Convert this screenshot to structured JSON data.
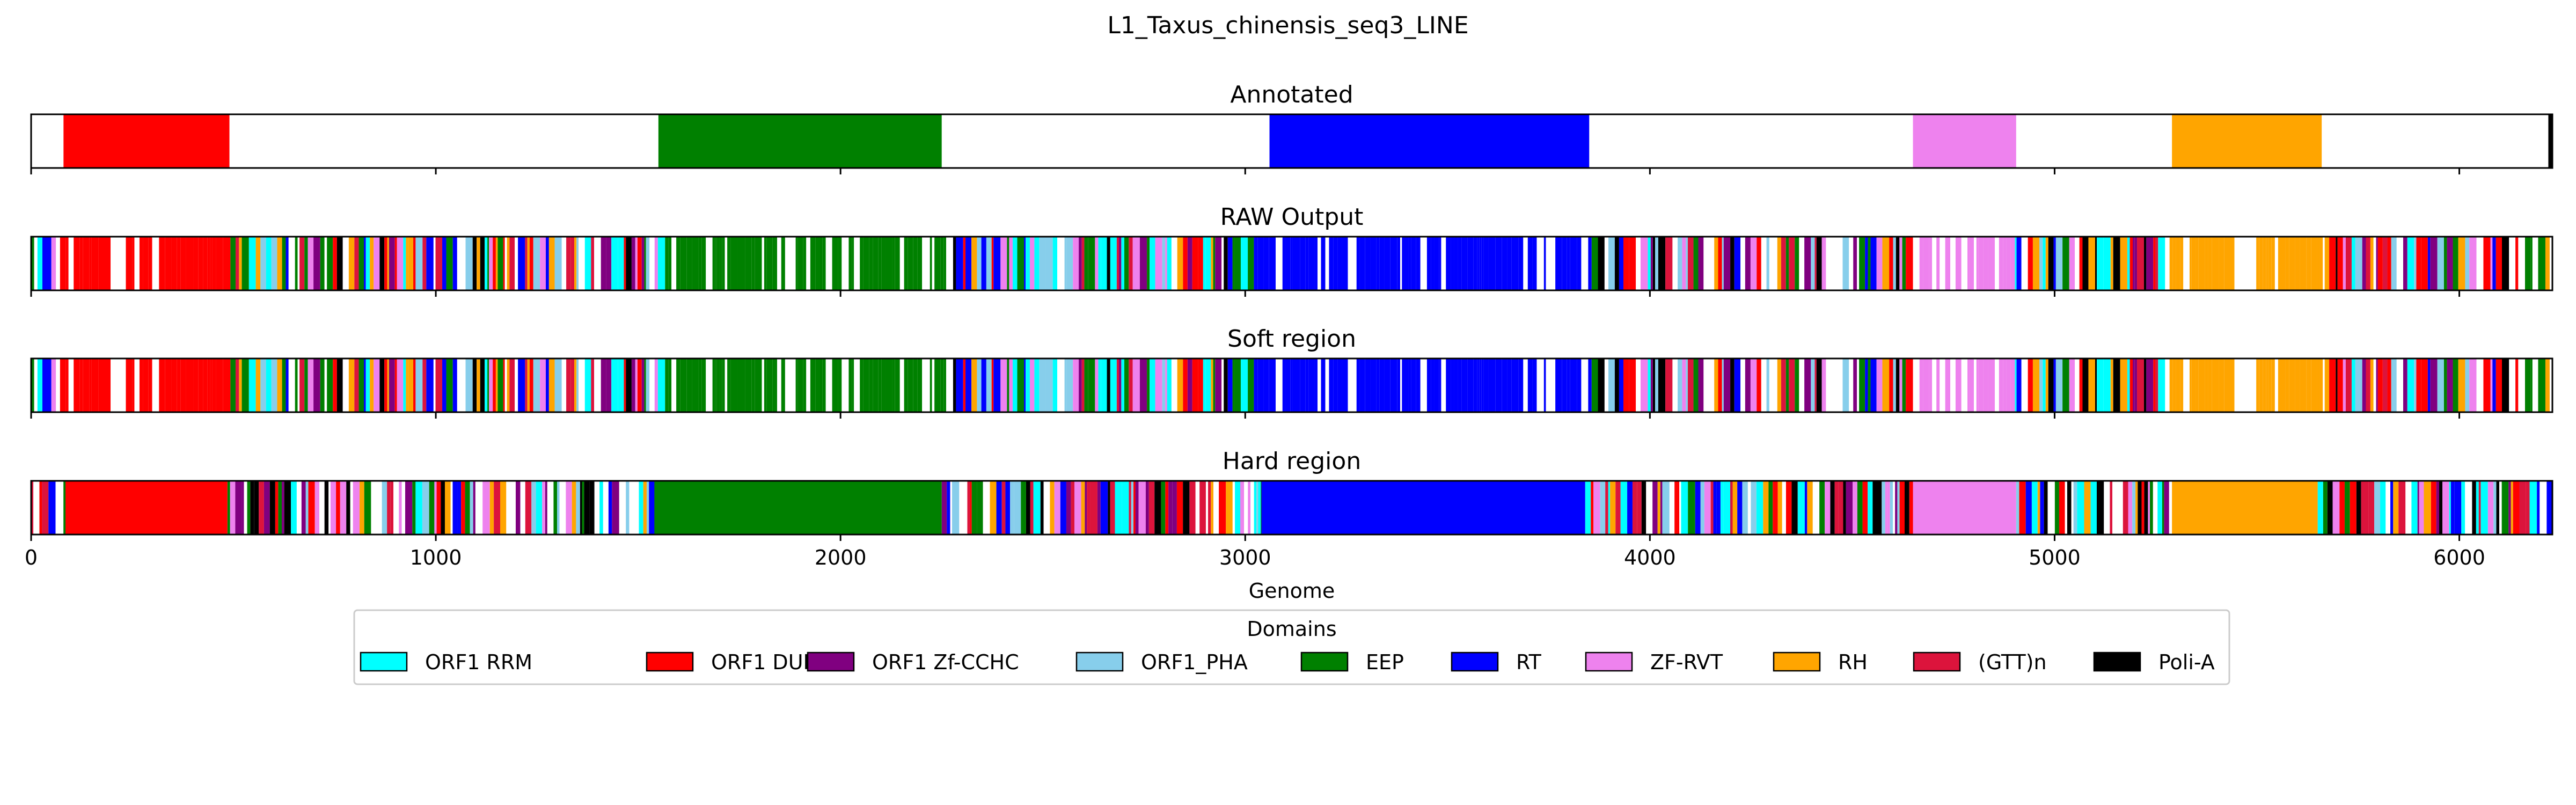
{
  "chart_data": {
    "type": "genome-track",
    "title": "L1_Taxus_chinensis_seq3_LINE",
    "xlabel": "Genome",
    "xlim": [
      0,
      6230
    ],
    "xticks": [
      0,
      1000,
      2000,
      3000,
      4000,
      5000,
      6000
    ],
    "xtick_labels": [
      "0",
      "1000",
      "2000",
      "3000",
      "4000",
      "5000",
      "6000"
    ],
    "legend": {
      "title": "Domains",
      "placement": "bottom-center",
      "entries": [
        {
          "name": "ORF1 RRM",
          "color": "#00ffff"
        },
        {
          "name": "ORF1 DUF",
          "color": "#ff0000"
        },
        {
          "name": "ORF1 Zf-CCHC",
          "color": "#800080"
        },
        {
          "name": "ORF1_PHA",
          "color": "#87ceeb"
        },
        {
          "name": "EEP",
          "color": "#008000"
        },
        {
          "name": "RT",
          "color": "#0000ff"
        },
        {
          "name": "ZF-RVT",
          "color": "#ee82ee"
        },
        {
          "name": "RH",
          "color": "#ffa500"
        },
        {
          "name": "(GTT)n",
          "color": "#dc143c"
        },
        {
          "name": "Poli-A",
          "color": "#000000"
        }
      ]
    },
    "tracks": [
      {
        "title": "Annotated",
        "segments": [
          {
            "domain": "ORF1 DUF",
            "start": 80,
            "end": 490
          },
          {
            "domain": "EEP",
            "start": 1550,
            "end": 2250
          },
          {
            "domain": "RT",
            "start": 3060,
            "end": 3850
          },
          {
            "domain": "ZF-RVT",
            "start": 4650,
            "end": 4905
          },
          {
            "domain": "RH",
            "start": 5290,
            "end": 5660
          },
          {
            "domain": "Poli-A",
            "start": 6220,
            "end": 6230
          }
        ]
      },
      {
        "title": "RAW Output",
        "dense": true,
        "regions": [
          {
            "domain": "ORF1 DUF",
            "start": 60,
            "end": 490
          },
          {
            "domain": "EEP",
            "start": 1550,
            "end": 2260
          },
          {
            "domain": "RT",
            "start": 3010,
            "end": 3850
          },
          {
            "domain": "ZF-RVT",
            "start": 4640,
            "end": 4900
          },
          {
            "domain": "RH",
            "start": 5280,
            "end": 5650
          }
        ]
      },
      {
        "title": "Soft region",
        "dense": true,
        "regions": [
          {
            "domain": "ORF1 DUF",
            "start": 60,
            "end": 490
          },
          {
            "domain": "EEP",
            "start": 1550,
            "end": 2260
          },
          {
            "domain": "RT",
            "start": 3010,
            "end": 3850
          },
          {
            "domain": "ZF-RVT",
            "start": 4640,
            "end": 4900
          },
          {
            "domain": "RH",
            "start": 5280,
            "end": 5650
          }
        ]
      },
      {
        "title": "Hard region",
        "dense": true,
        "regions": [
          {
            "domain": "ORF1 DUF",
            "start": 85,
            "end": 485,
            "solid": true
          },
          {
            "domain": "EEP",
            "start": 1540,
            "end": 2250,
            "solid": true
          },
          {
            "domain": "RT",
            "start": 3040,
            "end": 3840,
            "solid": true
          },
          {
            "domain": "ZF-RVT",
            "start": 4650,
            "end": 4905,
            "solid": true
          },
          {
            "domain": "RH",
            "start": 5290,
            "end": 5650,
            "solid": true
          }
        ]
      }
    ]
  }
}
